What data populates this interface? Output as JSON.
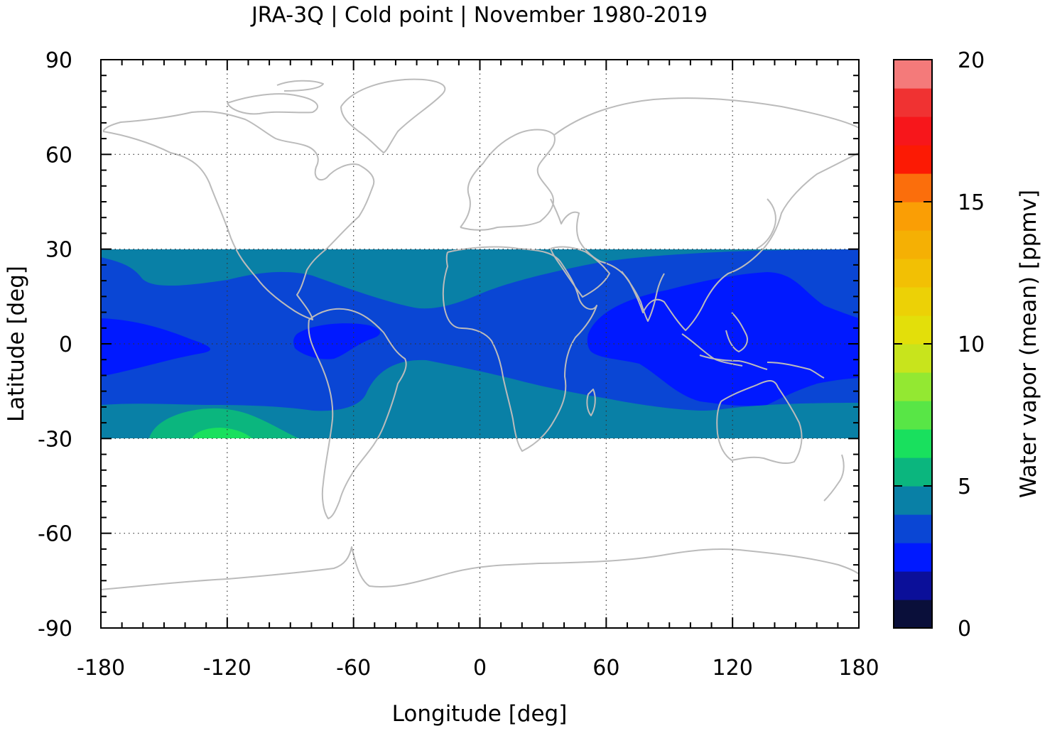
{
  "chart_data": {
    "type": "heatmap",
    "title": "JRA-3Q | Cold point | November 1980-2019",
    "xlabel": "Longitude [deg]",
    "ylabel": "Latitude [deg]",
    "xlim": [
      -180,
      180
    ],
    "ylim": [
      -90,
      90
    ],
    "x_ticks": [
      "-180",
      "-120",
      "-60",
      "0",
      "60",
      "120",
      "180"
    ],
    "y_ticks": [
      "-90",
      "-60",
      "-30",
      "0",
      "30",
      "60",
      "90"
    ],
    "grid": true,
    "data_lat_range": [
      -30,
      30
    ],
    "colorbar": {
      "label": "Water vapor (mean) [ppmv]",
      "range": [
        0,
        20
      ],
      "ticks": [
        "0",
        "5",
        "10",
        "15",
        "20"
      ],
      "step": 1,
      "colors": [
        "#0a0f3a",
        "#0b0f99",
        "#0019ff",
        "#0a46d4",
        "#0980a6",
        "#0bb67e",
        "#19e05e",
        "#58e646",
        "#93e832",
        "#c8e41c",
        "#e3df0a",
        "#ecd106",
        "#f2c004",
        "#f5b004",
        "#fa9e05",
        "#fb6e0c",
        "#fc1a04",
        "#f7161b",
        "#f03232",
        "#f47a7a",
        "#ffcccc"
      ]
    },
    "contour_levels": [
      {
        "range": [
          2,
          3
        ],
        "color": "#0019ff",
        "regions": [
          "Maritime Continent / western Pacific warm pool",
          "equatorial Amazon basin",
          "equatorial central Pacific near dateline"
        ]
      },
      {
        "range": [
          3,
          4
        ],
        "color": "#0a46d4",
        "regions": [
          "tropical belt roughly 20S-20N"
        ]
      },
      {
        "range": [
          4,
          5
        ],
        "color": "#0980a6",
        "regions": [
          "subtropical edges 20-30 N/S"
        ]
      },
      {
        "range": [
          5,
          6
        ],
        "color": "#0bb67e",
        "regions": [
          "South Pacific near 25S, 140W"
        ]
      },
      {
        "range": [
          6,
          7
        ],
        "color": "#19e05e",
        "regions": [
          "small patch near 28S, 120W"
        ]
      }
    ],
    "coastlines_color": "#bbbbbb"
  }
}
